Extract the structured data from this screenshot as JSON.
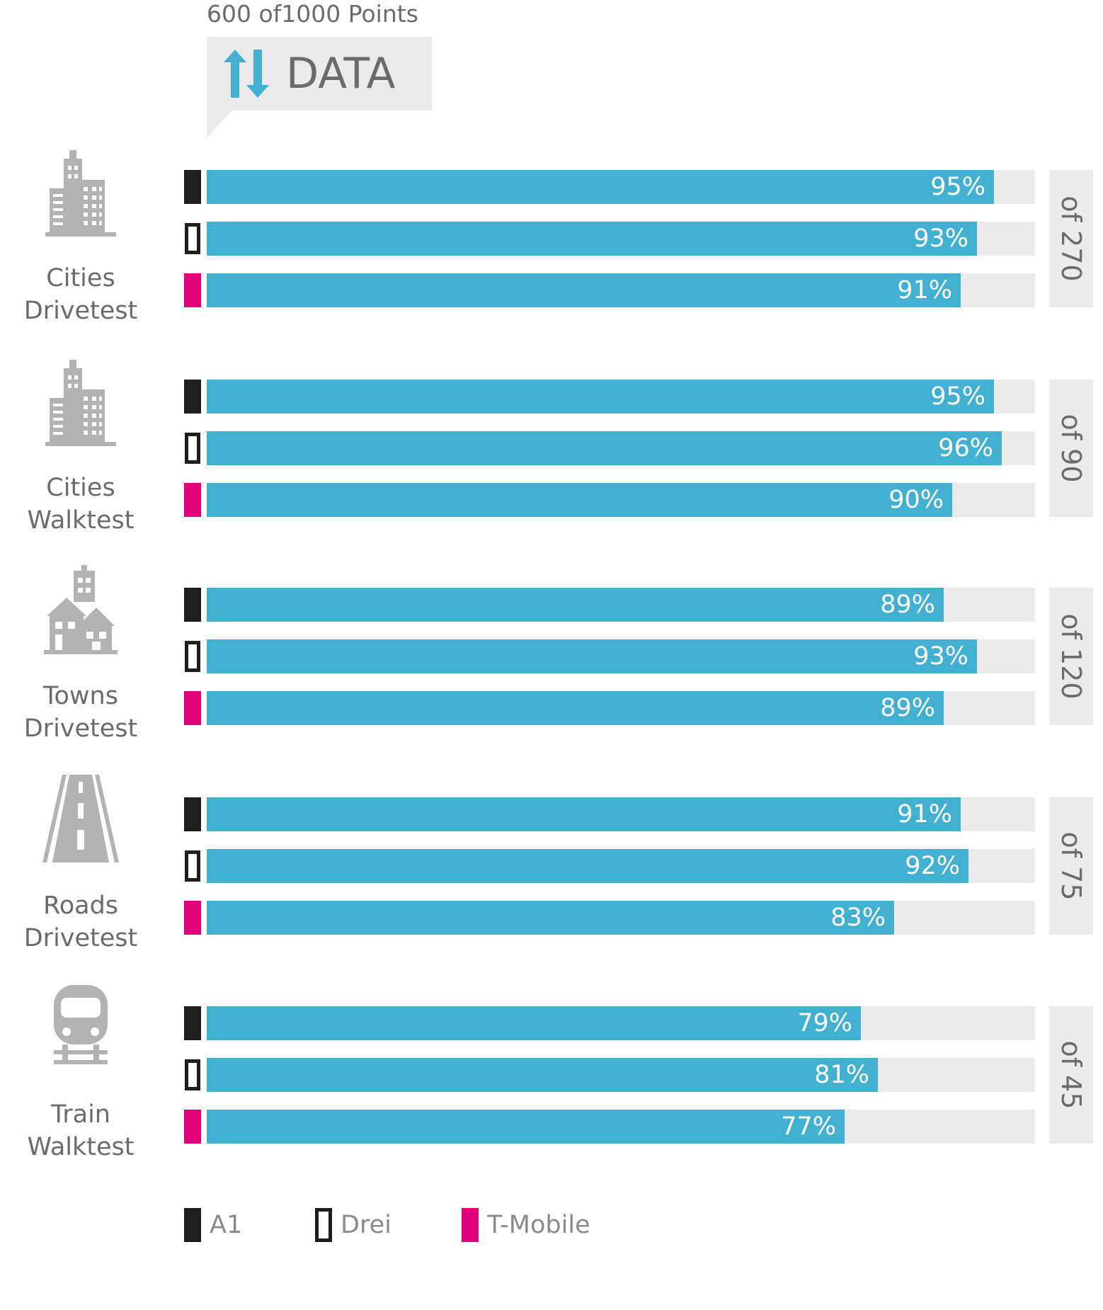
{
  "header": {
    "points": "600 of1000 Points",
    "data_label": "DATA",
    "icon": "up-down-arrows-icon"
  },
  "colors": {
    "bar": "#42b0d1",
    "track": "#ebebeb",
    "A1": "#1e1e1e",
    "Drei": "#1e1e1e",
    "T-Mobile": "#e2007a"
  },
  "chart_data": {
    "type": "bar",
    "orientation": "horizontal",
    "xlim": [
      0,
      100
    ],
    "unit": "%",
    "series_names": [
      "A1",
      "Drei",
      "T-Mobile"
    ],
    "groups": [
      {
        "label_line1": "Cities",
        "label_line2": "Drivetest",
        "icon": "city-buildings-icon",
        "total": "of 270",
        "values": [
          95,
          93,
          91
        ],
        "labels": [
          "95%",
          "93%",
          "91%"
        ]
      },
      {
        "label_line1": "Cities",
        "label_line2": "Walktest",
        "icon": "city-buildings-icon",
        "total": "of 90",
        "values": [
          95,
          96,
          90
        ],
        "labels": [
          "95%",
          "96%",
          "90%"
        ]
      },
      {
        "label_line1": "Towns",
        "label_line2": "Drivetest",
        "icon": "town-houses-icon",
        "total": "of 120",
        "values": [
          89,
          93,
          89
        ],
        "labels": [
          "89%",
          "93%",
          "89%"
        ]
      },
      {
        "label_line1": "Roads",
        "label_line2": "Drivetest",
        "icon": "road-icon",
        "total": "of 75",
        "values": [
          91,
          92,
          83
        ],
        "labels": [
          "91%",
          "92%",
          "83%"
        ]
      },
      {
        "label_line1": "Train",
        "label_line2": "Walktest",
        "icon": "train-icon",
        "total": "of 45",
        "values": [
          79,
          81,
          77
        ],
        "labels": [
          "79%",
          "81%",
          "77%"
        ]
      }
    ],
    "legend": [
      {
        "name": "A1",
        "style": "filled-black"
      },
      {
        "name": "Drei",
        "style": "outline-black"
      },
      {
        "name": "T-Mobile",
        "style": "filled-magenta"
      }
    ]
  }
}
